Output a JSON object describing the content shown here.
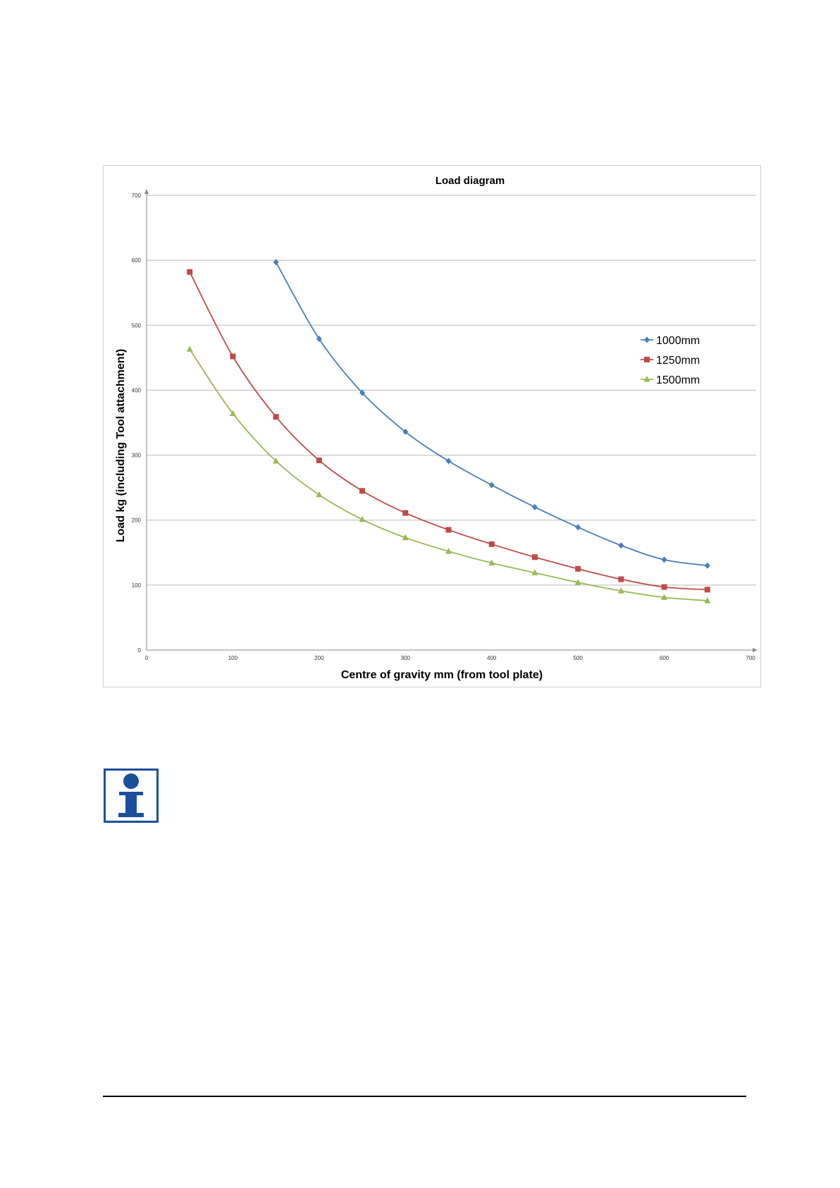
{
  "chart_data": {
    "type": "line",
    "title": "Load diagram",
    "xlabel": "Centre of gravity mm (from tool plate)",
    "ylabel": "Load kg (including Tool attachment)",
    "xlim": [
      0,
      700
    ],
    "ylim": [
      0,
      700
    ],
    "xticks": [
      "0",
      "100",
      "200",
      "300",
      "400",
      "500",
      "600",
      "700"
    ],
    "yticks": [
      "0",
      "100",
      "200",
      "300",
      "400",
      "500",
      "600",
      "700"
    ],
    "grid": "horizontal",
    "legend_position": "right",
    "series": [
      {
        "name": "1000mm",
        "color": "#4a7ebb",
        "marker": "diamond",
        "x": [
          150,
          200,
          250,
          300,
          350,
          400,
          450,
          500,
          550,
          600,
          650
        ],
        "y": [
          597,
          479,
          396,
          336,
          291,
          254,
          220,
          189,
          161,
          139,
          130
        ]
      },
      {
        "name": "1250mm",
        "color": "#be4b48",
        "marker": "square",
        "x": [
          50,
          100,
          150,
          200,
          250,
          300,
          350,
          400,
          450,
          500,
          550,
          600,
          650
        ],
        "y": [
          582,
          452,
          359,
          292,
          245,
          211,
          185,
          163,
          143,
          125,
          109,
          97,
          93
        ]
      },
      {
        "name": "1500mm",
        "color": "#98b954",
        "marker": "triangle",
        "x": [
          50,
          100,
          150,
          200,
          250,
          300,
          350,
          400,
          450,
          500,
          550,
          600,
          650
        ],
        "y": [
          463,
          364,
          291,
          239,
          201,
          173,
          152,
          134,
          119,
          104,
          91,
          81,
          76
        ]
      }
    ]
  },
  "info_icon": {
    "name": "info-icon",
    "color": "#1b4f9c"
  }
}
